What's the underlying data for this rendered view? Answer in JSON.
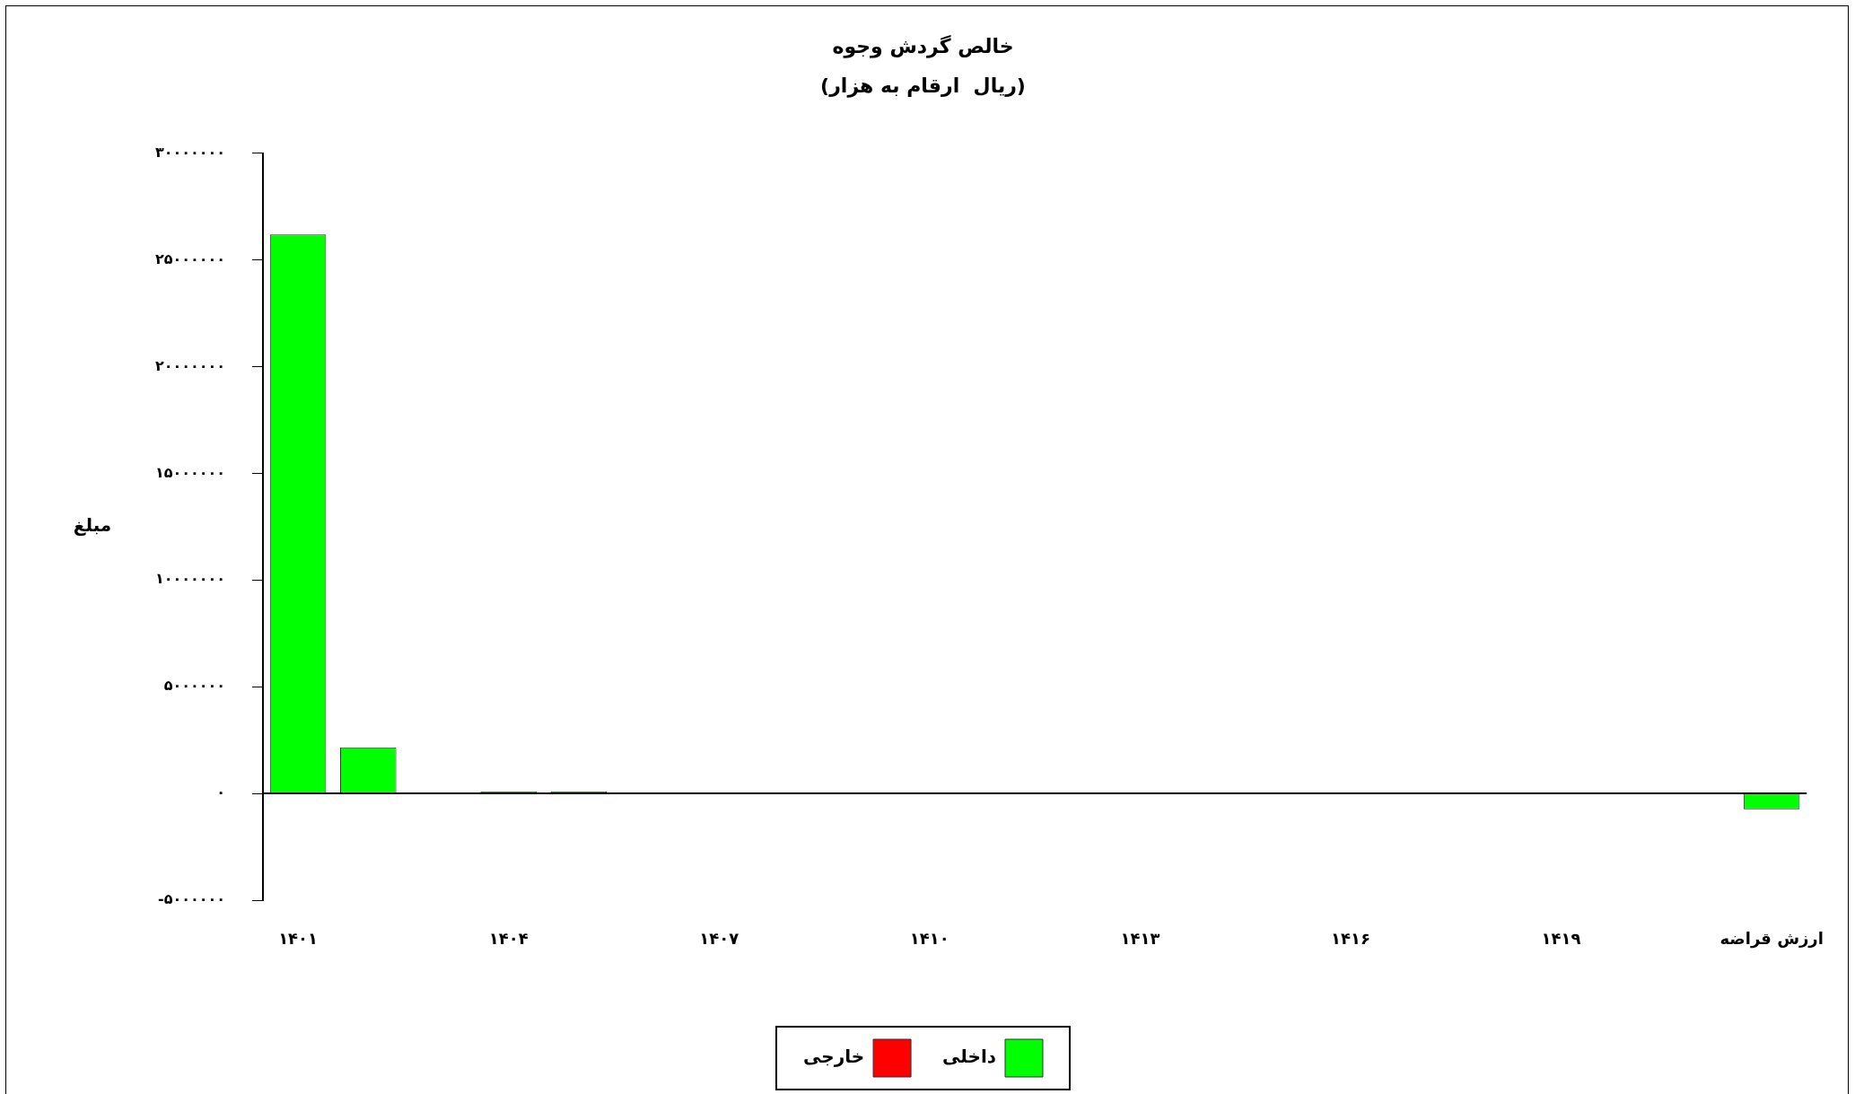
{
  "chart_data": {
    "type": "bar",
    "title": "خالص گردش وجوه",
    "subtitle": "(ریال  ارقام به هزار)",
    "ylabel": "مبلغ",
    "categories": [
      "۱۴۰۱",
      null,
      null,
      "۱۴۰۴",
      null,
      null,
      "۱۴۰۷",
      null,
      null,
      "۱۴۱۰",
      null,
      null,
      "۱۴۱۳",
      null,
      null,
      "۱۴۱۶",
      null,
      null,
      "۱۴۱۹",
      null,
      null,
      "ارزش قراضه"
    ],
    "series": [
      {
        "name": "داخلی",
        "color": "#00ff00",
        "values": [
          26200000,
          2160000,
          0,
          100000,
          100000,
          0,
          0,
          0,
          0,
          0,
          0,
          0,
          0,
          0,
          0,
          0,
          0,
          0,
          0,
          0,
          0,
          -740000
        ]
      },
      {
        "name": "خارجی",
        "color": "#ff0000",
        "values": [
          0,
          0,
          0,
          0,
          0,
          0,
          0,
          0,
          0,
          0,
          0,
          0,
          0,
          0,
          0,
          0,
          0,
          0,
          0,
          0,
          0,
          0
        ]
      }
    ],
    "stacked": true,
    "ylim": [
      -5000000,
      30000000
    ],
    "yticks": [
      {
        "value": -5000000,
        "label": "-۵۰۰۰۰۰۰"
      },
      {
        "value": 0,
        "label": "۰"
      },
      {
        "value": 5000000,
        "label": "۵۰۰۰۰۰۰"
      },
      {
        "value": 10000000,
        "label": "۱۰۰۰۰۰۰۰"
      },
      {
        "value": 15000000,
        "label": "۱۵۰۰۰۰۰۰"
      },
      {
        "value": 20000000,
        "label": "۲۰۰۰۰۰۰۰"
      },
      {
        "value": 25000000,
        "label": "۲۵۰۰۰۰۰۰"
      },
      {
        "value": 30000000,
        "label": "۳۰۰۰۰۰۰۰"
      }
    ],
    "ref_lines": [
      {
        "axis": "y",
        "value": 0,
        "color": "#000000"
      }
    ],
    "grid": false,
    "legend": "bottom"
  }
}
